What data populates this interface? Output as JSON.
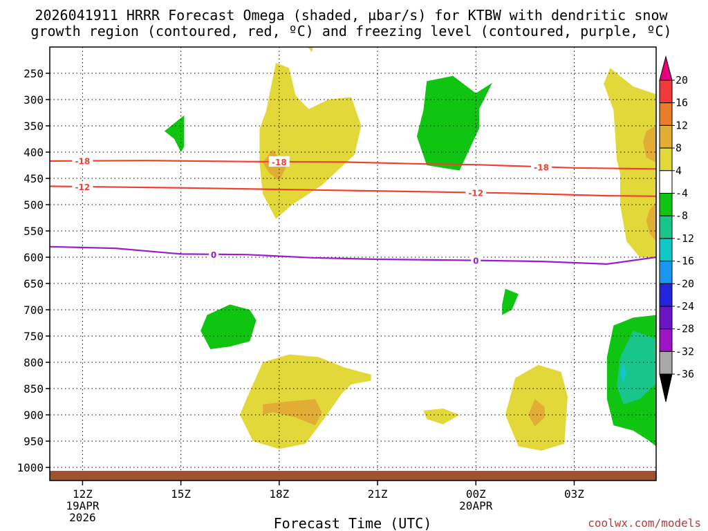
{
  "chart_data": {
    "type": "contour",
    "title_line1": "2026041911 HRRR Forecast Omega (shaded, µbar/s) for KTBW with dendritic snow",
    "title_line2": "growth region (contoured, red, ºC) and freezing level (contoured, purple, ºC)",
    "xlabel": "Forecast Time (UTC)",
    "credit": "coolwx.com/models",
    "x_ticks": [
      {
        "label": "12Z",
        "sub": "19APR",
        "sub2": "2026",
        "hour": 0
      },
      {
        "label": "15Z",
        "sub": "",
        "sub2": "",
        "hour": 3
      },
      {
        "label": "18Z",
        "sub": "",
        "sub2": "",
        "hour": 6
      },
      {
        "label": "21Z",
        "sub": "",
        "sub2": "",
        "hour": 9
      },
      {
        "label": "00Z",
        "sub": "20APR",
        "sub2": "",
        "hour": 12
      },
      {
        "label": "03Z",
        "sub": "",
        "sub2": "",
        "hour": 15
      }
    ],
    "x_range_hours": [
      -1,
      17.5
    ],
    "y_ticks": [
      250,
      300,
      350,
      400,
      450,
      500,
      550,
      600,
      650,
      700,
      750,
      800,
      850,
      900,
      950,
      1000
    ],
    "y_range_hpa": [
      200,
      1025
    ],
    "colorbar": {
      "labels": [
        "20",
        "16",
        "12",
        "8",
        "4",
        "-4",
        "-8",
        "-12",
        "-16",
        "-20",
        "-24",
        "-28",
        "-32",
        "-36"
      ],
      "colors": [
        "#e8007a",
        "#f23a3a",
        "#ea7d28",
        "#e2ad35",
        "#e3d83a",
        "#ffffff",
        "#10c412",
        "#18c68c",
        "#10c8c8",
        "#1a96f0",
        "#2424dc",
        "#6a14c4",
        "#9c14c4",
        "#a8a8a8",
        "#000000"
      ]
    },
    "contours": [
      {
        "name": "dgz-upper",
        "color": "#ef4030",
        "label": "-18",
        "points": [
          [
            -1,
            417
          ],
          [
            2,
            416
          ],
          [
            5,
            418
          ],
          [
            8,
            419
          ],
          [
            10,
            422
          ],
          [
            12,
            424
          ],
          [
            15,
            430
          ],
          [
            17.5,
            432
          ]
        ],
        "label_at": [
          0,
          6,
          14
        ]
      },
      {
        "name": "dgz-lower",
        "color": "#ef4030",
        "label": "-12",
        "points": [
          [
            -1,
            465
          ],
          [
            3,
            468
          ],
          [
            7,
            472
          ],
          [
            10,
            475
          ],
          [
            13,
            478
          ],
          [
            16,
            483
          ],
          [
            17.5,
            484
          ]
        ],
        "label_at": [
          0,
          12
        ]
      },
      {
        "name": "freezing-level",
        "color": "#9a1ccc",
        "label": "0",
        "points": [
          [
            -1,
            580
          ],
          [
            1,
            583
          ],
          [
            3,
            594
          ],
          [
            5,
            595
          ],
          [
            7,
            601
          ],
          [
            9,
            604
          ],
          [
            12,
            606
          ],
          [
            14,
            608
          ],
          [
            16,
            613
          ],
          [
            17.5,
            600
          ]
        ],
        "label_at": [
          4,
          12
        ]
      }
    ],
    "shaded_regions": [
      {
        "name": "upward-4-8",
        "color": "#e3d83a",
        "points": [
          [
            5.9,
            230
          ],
          [
            6.3,
            240
          ],
          [
            6.5,
            292
          ],
          [
            6.9,
            318
          ],
          [
            7.5,
            300
          ],
          [
            8.2,
            295
          ],
          [
            8.5,
            350
          ],
          [
            8.3,
            405
          ],
          [
            7.3,
            463
          ],
          [
            6.4,
            500
          ],
          [
            5.9,
            527
          ],
          [
            5.5,
            480
          ],
          [
            5.4,
            420
          ],
          [
            5.4,
            356
          ],
          [
            5.6,
            322
          ],
          [
            5.8,
            260
          ]
        ]
      },
      {
        "name": "upward-4-8",
        "color": "#e3d83a",
        "points": [
          [
            5.5,
            800
          ],
          [
            6.3,
            785
          ],
          [
            7.2,
            790
          ],
          [
            8,
            810
          ],
          [
            8.6,
            820
          ],
          [
            8.8,
            823
          ],
          [
            8.8,
            835
          ],
          [
            8.2,
            842
          ],
          [
            7.9,
            860
          ],
          [
            7.4,
            905
          ],
          [
            6.8,
            955
          ],
          [
            6,
            965
          ],
          [
            5.2,
            950
          ],
          [
            4.8,
            900
          ],
          [
            5,
            870
          ]
        ]
      },
      {
        "name": "upward-4-8",
        "color": "#e3d83a",
        "points": [
          [
            6.8,
            168
          ],
          [
            7.1,
            178
          ],
          [
            7,
            210
          ],
          [
            6.8,
            195
          ]
        ]
      },
      {
        "name": "upward-4-8",
        "color": "#e3d83a",
        "points": [
          [
            10.4,
            892
          ],
          [
            11,
            888
          ],
          [
            11.5,
            900
          ],
          [
            11,
            918
          ],
          [
            10.5,
            908
          ]
        ]
      },
      {
        "name": "upward-4-8",
        "color": "#e3d83a",
        "points": [
          [
            13.2,
            830
          ],
          [
            13.9,
            805
          ],
          [
            14.6,
            818
          ],
          [
            14.8,
            865
          ],
          [
            14.7,
            955
          ],
          [
            14,
            968
          ],
          [
            13.3,
            960
          ],
          [
            12.9,
            900
          ]
        ]
      },
      {
        "name": "upward-4-8",
        "color": "#e3d83a",
        "points": [
          [
            16.1,
            240
          ],
          [
            16.8,
            275
          ],
          [
            17.5,
            290
          ],
          [
            17.5,
            600
          ],
          [
            17,
            600
          ],
          [
            16.6,
            570
          ],
          [
            16.4,
            500
          ],
          [
            16.4,
            440
          ],
          [
            16.3,
            415
          ],
          [
            16.2,
            320
          ],
          [
            15.9,
            270
          ]
        ]
      },
      {
        "name": "upward-8-12",
        "color": "#e2ad35",
        "points": [
          [
            5.8,
            395
          ],
          [
            6.2,
            430
          ],
          [
            6,
            455
          ],
          [
            5.7,
            440
          ],
          [
            5.5,
            420
          ]
        ]
      },
      {
        "name": "upward-8-12",
        "color": "#e2ad35",
        "points": [
          [
            5.5,
            880
          ],
          [
            6.2,
            875
          ],
          [
            7.1,
            870
          ],
          [
            7.3,
            895
          ],
          [
            7.1,
            920
          ],
          [
            6.5,
            905
          ],
          [
            5.8,
            895
          ],
          [
            5.5,
            900
          ]
        ]
      },
      {
        "name": "upward-8-12",
        "color": "#e2ad35",
        "points": [
          [
            13.8,
            870
          ],
          [
            14.1,
            885
          ],
          [
            14.1,
            905
          ],
          [
            13.8,
            922
          ],
          [
            13.6,
            900
          ]
        ]
      },
      {
        "name": "upward-8-12",
        "color": "#e2ad35",
        "points": [
          [
            17.2,
            360
          ],
          [
            17.5,
            350
          ],
          [
            17.5,
            420
          ],
          [
            17.2,
            410
          ],
          [
            17.1,
            380
          ]
        ]
      },
      {
        "name": "upward-8-12",
        "color": "#e2ad35",
        "points": [
          [
            17.3,
            510
          ],
          [
            17.5,
            495
          ],
          [
            17.5,
            570
          ],
          [
            17.3,
            555
          ],
          [
            17.2,
            530
          ]
        ]
      },
      {
        "name": "downward-4-8",
        "color": "#10c412",
        "points": [
          [
            10.5,
            265
          ],
          [
            11.3,
            255
          ],
          [
            12,
            288
          ],
          [
            12.5,
            268
          ],
          [
            12.1,
            318
          ],
          [
            12.1,
            355
          ],
          [
            11.5,
            435
          ],
          [
            10.5,
            425
          ],
          [
            10.2,
            370
          ],
          [
            10.4,
            320
          ]
        ]
      },
      {
        "name": "downward-4-8",
        "color": "#10c412",
        "points": [
          [
            2.9,
            340
          ],
          [
            3.1,
            330
          ],
          [
            3.1,
            390
          ],
          [
            3,
            400
          ],
          [
            2.8,
            375
          ],
          [
            2.5,
            360
          ]
        ]
      },
      {
        "name": "downward-4-8",
        "color": "#10c412",
        "points": [
          [
            3.6,
            740
          ],
          [
            3.8,
            710
          ],
          [
            4.5,
            690
          ],
          [
            5.1,
            700
          ],
          [
            5.3,
            720
          ],
          [
            5.1,
            760
          ],
          [
            4.5,
            770
          ],
          [
            3.9,
            775
          ]
        ]
      },
      {
        "name": "downward-4-8",
        "color": "#10c412",
        "points": [
          [
            12.9,
            660
          ],
          [
            13.3,
            670
          ],
          [
            13.1,
            700
          ],
          [
            12.8,
            710
          ],
          [
            12.8,
            690
          ]
        ]
      },
      {
        "name": "downward-4-8",
        "color": "#10c412",
        "points": [
          [
            16.2,
            730
          ],
          [
            16.8,
            715
          ],
          [
            17.5,
            710
          ],
          [
            17.5,
            960
          ],
          [
            17.3,
            950
          ],
          [
            16.8,
            930
          ],
          [
            16.2,
            920
          ],
          [
            16,
            870
          ],
          [
            16,
            790
          ]
        ]
      },
      {
        "name": "downward-8-12",
        "color": "#18c68c",
        "points": [
          [
            16.8,
            740
          ],
          [
            17.5,
            755
          ],
          [
            17.5,
            840
          ],
          [
            17,
            870
          ],
          [
            16.5,
            880
          ],
          [
            16.3,
            845
          ],
          [
            16.4,
            790
          ]
        ]
      },
      {
        "name": "downward-12-16",
        "color": "#10c8c8",
        "points": [
          [
            16.5,
            800
          ],
          [
            16.6,
            820
          ],
          [
            16.5,
            840
          ],
          [
            16.4,
            820
          ]
        ]
      }
    ]
  }
}
